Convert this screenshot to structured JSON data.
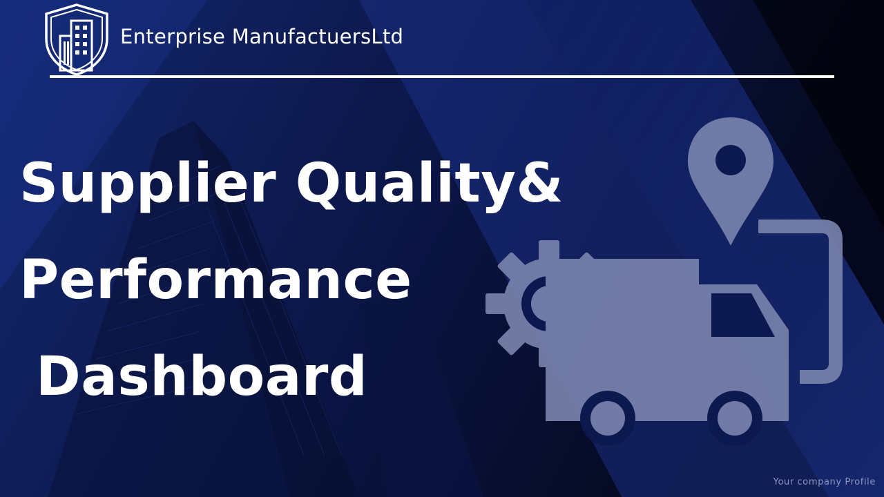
{
  "header": {
    "company_name": "Enterprise ManufactuersLtd",
    "logo_icon": "shield-building-icon"
  },
  "title": {
    "line1": "Supplier Quality&",
    "line2": "Performance",
    "line3": "Dashboard"
  },
  "footer": {
    "tagline": "Your company Profile"
  },
  "illustration": {
    "icons": [
      "location-pin-icon",
      "gear-icon",
      "delivery-truck-icon"
    ]
  },
  "colors": {
    "background": "#0d1a4f",
    "text": "#ffffff",
    "icon_fill": "#7a83ad"
  }
}
